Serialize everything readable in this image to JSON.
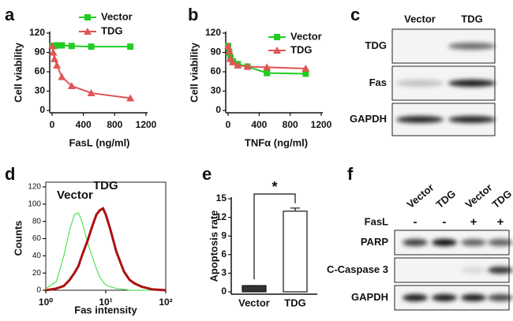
{
  "chart_data": [
    {
      "panel": "a",
      "type": "line",
      "x_label": "FasL (ng/ml)",
      "y_label": "Cell viability",
      "x": [
        0,
        15,
        31,
        62,
        125,
        250,
        500,
        1000
      ],
      "series": [
        {
          "name": "Vector",
          "color": "#22cc22",
          "marker": "square",
          "values": [
            100,
            100,
            100,
            101,
            101,
            100,
            99,
            99
          ]
        },
        {
          "name": "TDG",
          "color": "#e05555",
          "marker": "triangle",
          "values": [
            100,
            90,
            80,
            70,
            52,
            38,
            27,
            19
          ]
        }
      ],
      "xlim": [
        0,
        1200
      ],
      "xticks": [
        0,
        400,
        800,
        1200
      ],
      "ylim": [
        0,
        120
      ],
      "yticks": [
        0,
        30,
        60,
        90,
        120
      ],
      "legend": "upper right"
    },
    {
      "panel": "b",
      "type": "line",
      "x_label": "TNFα (ng/ml)",
      "y_label": "Cell viability",
      "x": [
        0,
        15,
        31,
        62,
        125,
        250,
        500,
        1000
      ],
      "series": [
        {
          "name": "Vector",
          "color": "#22cc22",
          "marker": "square",
          "values": [
            100,
            90,
            82,
            76,
            72,
            68,
            58,
            57
          ]
        },
        {
          "name": "TDG",
          "color": "#e05555",
          "marker": "triangle",
          "values": [
            100,
            92,
            80,
            75,
            70,
            68,
            67,
            65
          ]
        }
      ],
      "xlim": [
        0,
        1200
      ],
      "xticks": [
        0,
        400,
        800,
        1200
      ],
      "ylim": [
        0,
        120
      ],
      "yticks": [
        0,
        30,
        60,
        90,
        120
      ],
      "legend": "upper right"
    },
    {
      "panel": "d",
      "type": "line",
      "x_label": "Fas intensity",
      "y_label": "Counts",
      "xscale": "log",
      "x": [
        1,
        1.5,
        2,
        2.5,
        3,
        3.5,
        4,
        5,
        6,
        7,
        8,
        9,
        10,
        12,
        15,
        20,
        25,
        30,
        40,
        60,
        100
      ],
      "series": [
        {
          "name": "Vector",
          "color": "#33dd33",
          "line_width": 1,
          "values": [
            2,
            10,
            40,
            70,
            88,
            90,
            80,
            55,
            38,
            25,
            15,
            10,
            6,
            4,
            2,
            1,
            0,
            0,
            0,
            0,
            0
          ]
        },
        {
          "name": "TDG",
          "color": "#aa1111",
          "line_width": 3,
          "values": [
            0,
            2,
            5,
            12,
            20,
            28,
            40,
            58,
            75,
            88,
            93,
            95,
            88,
            70,
            45,
            22,
            12,
            8,
            4,
            1,
            0
          ]
        }
      ],
      "xlim": [
        1,
        100
      ],
      "xticks": [
        {
          "value": 1,
          "label": "10⁰"
        },
        {
          "value": 10,
          "label": "10¹"
        },
        {
          "value": 100,
          "label": "10²"
        }
      ],
      "ylim": [
        0,
        120
      ],
      "yticks": [
        0,
        20,
        40,
        60,
        80,
        100,
        120
      ],
      "legend": "in plot"
    },
    {
      "panel": "e",
      "type": "bar",
      "y_label": "Apoptosis rate",
      "annotation": "*",
      "categories": [
        "Vector",
        "TDG"
      ],
      "values": [
        1,
        13
      ],
      "errors": [
        0,
        0.5
      ],
      "colors": [
        "#333333",
        "#ffffff"
      ],
      "ylim": [
        0,
        15
      ],
      "yticks": [
        0,
        3,
        6,
        9,
        12,
        15
      ]
    }
  ],
  "blots": [
    {
      "panel": "c",
      "lanes": [
        "Vector",
        "TDG"
      ],
      "rows": [
        "TDG",
        "Fas",
        "GAPDH"
      ]
    },
    {
      "panel": "f",
      "lanes": [
        "Vector",
        "TDG",
        "Vector",
        "TDG"
      ],
      "treatment": {
        "label": "FasL",
        "values": [
          "-",
          "-",
          "+",
          "+"
        ]
      },
      "rows": [
        "PARP",
        "C-Caspase 3",
        "GAPDH"
      ]
    }
  ]
}
